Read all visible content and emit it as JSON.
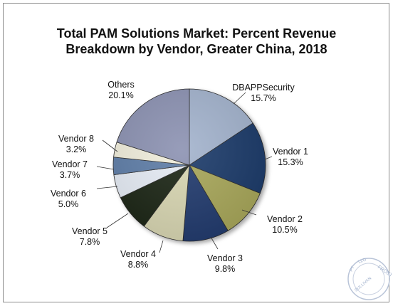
{
  "chart_data": {
    "type": "pie",
    "title": "Total PAM Solutions Market: Percent Revenue Breakdown by Vendor, Greater China, 2018",
    "title_lines": [
      "Total PAM Solutions Market: Percent Revenue",
      "Breakdown by Vendor, Greater China, 2018"
    ],
    "start_angle_deg": 0,
    "direction": "clockwise",
    "slices": [
      {
        "name": "DBAPPSecurity",
        "value": 15.7,
        "value_label": "15.7%",
        "color": "#a3b3cd"
      },
      {
        "name": "Vendor 1",
        "value": 15.3,
        "value_label": "15.3%",
        "color": "#1c3a6b"
      },
      {
        "name": "Vendor 2",
        "value": 10.5,
        "value_label": "10.5%",
        "color": "#a8a75a"
      },
      {
        "name": "Vendor 3",
        "value": 9.8,
        "value_label": "9.8%",
        "color": "#243a6e"
      },
      {
        "name": "Vendor 4",
        "value": 8.8,
        "value_label": "8.8%",
        "color": "#d8d6b2"
      },
      {
        "name": "Vendor 5",
        "value": 7.8,
        "value_label": "7.8%",
        "color": "#1f2514"
      },
      {
        "name": "Vendor 6",
        "value": 5.0,
        "value_label": "5.0%",
        "color": "#e6ecf5"
      },
      {
        "name": "Vendor 7",
        "value": 3.7,
        "value_label": "3.7%",
        "color": "#5f7ea8"
      },
      {
        "name": "Vendor 8",
        "value": 3.2,
        "value_label": "3.2%",
        "color": "#f1eedc"
      },
      {
        "name": "Others",
        "value": 20.1,
        "value_label": "20.1%",
        "color": "#8c92b2"
      }
    ]
  },
  "watermark": {
    "top_text": "FROST",
    "bottom_text": "SULLIVAN",
    "left_text": "PT",
    "right_text": "LLO"
  }
}
